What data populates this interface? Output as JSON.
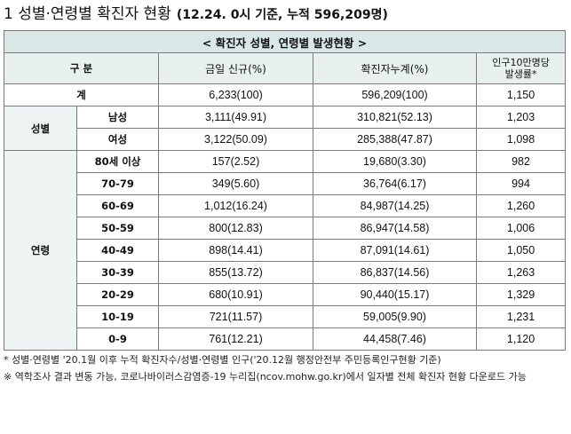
{
  "title": "1 성별·연령별 확진자 현황",
  "subtitle": "(12.24. 0시 기준, 누적 596,209명)",
  "table": {
    "banner": "< 확진자 성별, 연령별 발생현황 >",
    "headers": {
      "category": "구 분",
      "new": "금일 신규(%)",
      "cumulative": "확진자누계(%)",
      "per100k_line1": "인구10만명당",
      "per100k_line2": "발생률*"
    },
    "total": {
      "label": "계",
      "new": "6,233(100)",
      "cumulative": "596,209(100)",
      "rate": "1,150"
    },
    "gender": {
      "label": "성별",
      "rows": [
        {
          "label": "남성",
          "new": "3,111(49.91)",
          "cumulative": "310,821(52.13)",
          "rate": "1,203"
        },
        {
          "label": "여성",
          "new": "3,122(50.09)",
          "cumulative": "285,388(47.87)",
          "rate": "1,098"
        }
      ]
    },
    "age": {
      "label": "연령",
      "rows": [
        {
          "label": "80세 이상",
          "new": "157(2.52)",
          "cumulative": "19,680(3.30)",
          "rate": "982"
        },
        {
          "label": "70-79",
          "new": "349(5.60)",
          "cumulative": "36,764(6.17)",
          "rate": "994"
        },
        {
          "label": "60-69",
          "new": "1,012(16.24)",
          "cumulative": "84,987(14.25)",
          "rate": "1,260"
        },
        {
          "label": "50-59",
          "new": "800(12.83)",
          "cumulative": "86,947(14.58)",
          "rate": "1,006"
        },
        {
          "label": "40-49",
          "new": "898(14.41)",
          "cumulative": "87,091(14.61)",
          "rate": "1,050"
        },
        {
          "label": "30-39",
          "new": "855(13.72)",
          "cumulative": "86,837(14.56)",
          "rate": "1,263"
        },
        {
          "label": "20-29",
          "new": "680(10.91)",
          "cumulative": "90,440(15.17)",
          "rate": "1,329"
        },
        {
          "label": "10-19",
          "new": "721(11.57)",
          "cumulative": "59,005(9.90)",
          "rate": "1,231"
        },
        {
          "label": "0-9",
          "new": "761(12.21)",
          "cumulative": "44,458(7.46)",
          "rate": "1,120"
        }
      ]
    }
  },
  "notes": [
    "* 성별·연령별 '20.1월 이후 누적 확진자수/성별·연령별 인구('20.12월 행정안전부 주민등록인구현황 기준)",
    "※ 역학조사 결과 변동 가능, 코로나바이러스감염증-19 누리집(ncov.mohw.go.kr)에서 일자별 전체 확진자 현황 다운로드 가능"
  ]
}
